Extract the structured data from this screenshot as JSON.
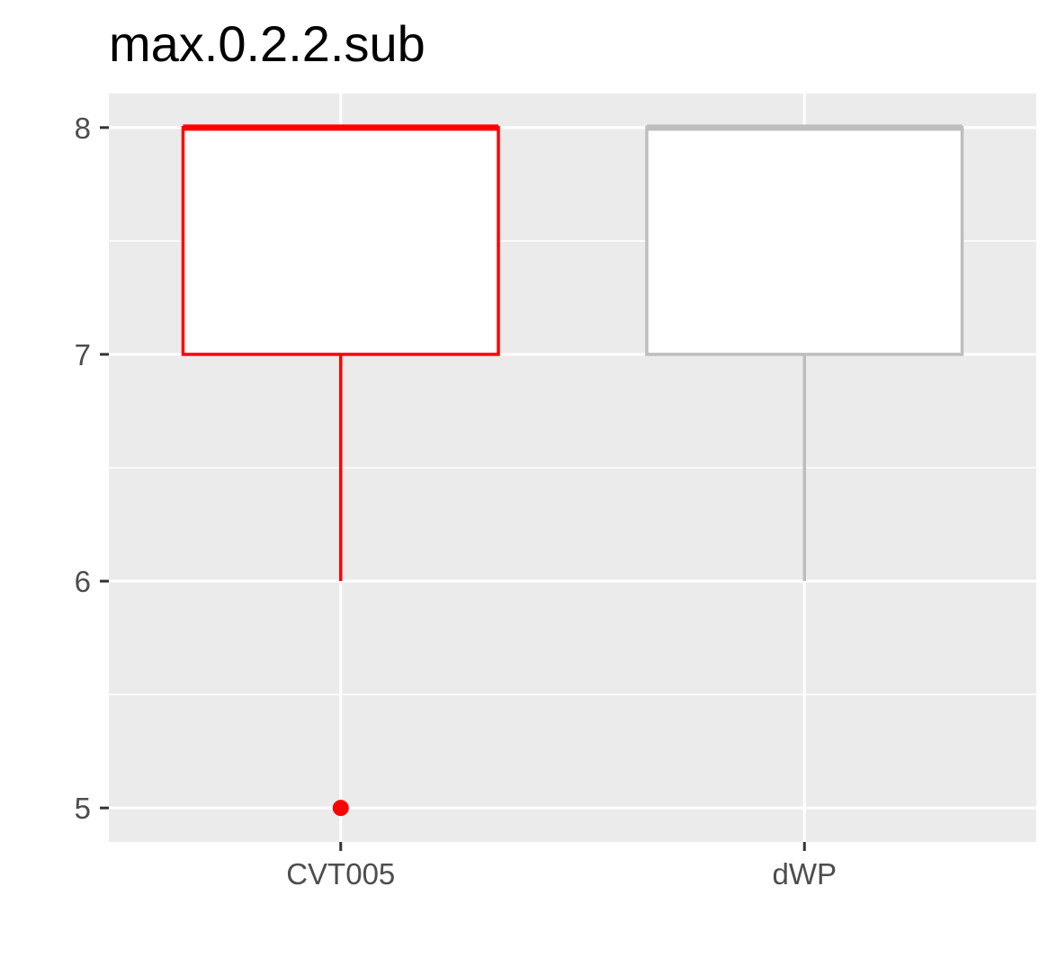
{
  "chart_data": {
    "type": "boxplot",
    "title": "max.0.2.2.sub",
    "xlabel": "",
    "ylabel": "",
    "categories": [
      "CVT005",
      "dWP"
    ],
    "ylim": [
      4.85,
      8.15
    ],
    "y_ticks": [
      5,
      6,
      7,
      8
    ],
    "y_tick_labels": [
      "5",
      "6",
      "7",
      "8"
    ],
    "grid": true,
    "legend": "none",
    "boxes": [
      {
        "category": "CVT005",
        "color": "#ff0000",
        "lower_whisker": 6,
        "q1": 7,
        "median": 8,
        "q3": 8,
        "upper_whisker": 8,
        "outliers": [
          5
        ]
      },
      {
        "category": "dWP",
        "color": "#bebebe",
        "lower_whisker": 6,
        "q1": 7,
        "median": 8,
        "q3": 8,
        "upper_whisker": 8,
        "outliers": []
      }
    ]
  }
}
